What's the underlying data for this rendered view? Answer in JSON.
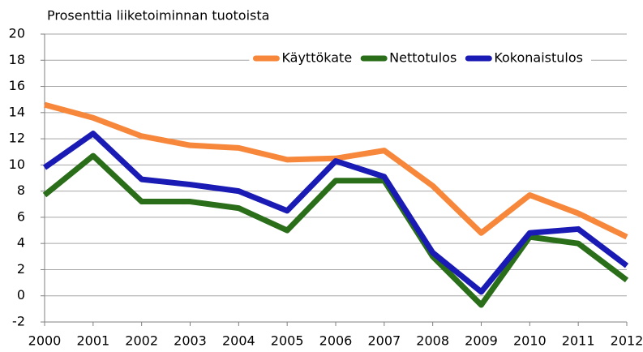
{
  "chart_data": {
    "type": "line",
    "y_axis_label": "Prosenttia liiketoiminnan tuotoista",
    "categories": [
      "2000",
      "2001",
      "2002",
      "2003",
      "2004",
      "2005",
      "2006",
      "2007",
      "2008",
      "2009",
      "2010",
      "2011",
      "2012"
    ],
    "series": [
      {
        "name": "Käyttökate",
        "color": "#f7873a",
        "values": [
          14.6,
          13.6,
          12.2,
          11.5,
          11.3,
          10.4,
          10.5,
          11.1,
          8.4,
          4.8,
          7.7,
          6.3,
          4.5
        ]
      },
      {
        "name": "Nettotulos",
        "color": "#2a6e1a",
        "values": [
          7.7,
          10.7,
          7.2,
          7.2,
          6.7,
          5.0,
          8.8,
          8.8,
          3.0,
          -0.7,
          4.5,
          4.0,
          1.2
        ]
      },
      {
        "name": "Kokonaistulos",
        "color": "#1a1ab4",
        "values": [
          9.8,
          12.4,
          8.9,
          8.5,
          8.0,
          6.5,
          10.3,
          9.1,
          3.3,
          0.3,
          4.8,
          5.1,
          2.3
        ]
      }
    ],
    "ylim": [
      -2,
      20
    ],
    "yticks": [
      -2,
      0,
      2,
      4,
      6,
      8,
      10,
      12,
      14,
      16,
      18,
      20
    ],
    "grid": true,
    "legend_position": "top-right"
  }
}
